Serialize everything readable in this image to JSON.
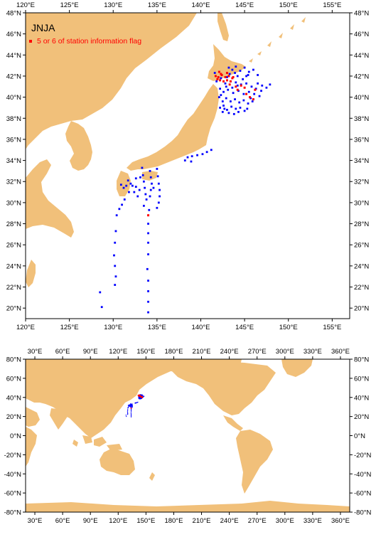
{
  "colors": {
    "land": "#f1c07a",
    "ocean": "#ffffff",
    "frame": "#000000",
    "station": "#0000ff",
    "flagged": "#ff0000"
  },
  "map_top": {
    "title": "JNJA",
    "legend": {
      "marker": "square",
      "text": "5 or 6 of station information flag"
    },
    "lon_range": [
      120,
      157
    ],
    "lat_range": [
      19,
      48
    ],
    "lon_labels": [
      "120°E",
      "125°E",
      "130°E",
      "135°E",
      "140°E",
      "145°E",
      "150°E",
      "155°E"
    ],
    "lat_labels": [
      "20°N",
      "22°N",
      "24°N",
      "26°N",
      "28°N",
      "30°N",
      "32°N",
      "34°N",
      "36°N",
      "38°N",
      "40°N",
      "42°N",
      "44°N",
      "46°N",
      "48°N"
    ]
  },
  "map_world": {
    "lon_range": [
      20,
      370
    ],
    "lat_range": [
      -80,
      80
    ],
    "lon_labels": [
      "30°E",
      "60°E",
      "90°E",
      "120°E",
      "150°E",
      "180°E",
      "210°E",
      "240°E",
      "270°E",
      "300°E",
      "330°E",
      "360°E"
    ],
    "lat_labels": [
      "80°N",
      "60°N",
      "40°N",
      "20°N",
      "0°N",
      "-20°N",
      "-40°N",
      "-60°N",
      "-80°N"
    ]
  },
  "stations": {
    "blue": [
      [
        143.2,
        42.8
      ],
      [
        143.6,
        42.6
      ],
      [
        144.0,
        42.9
      ],
      [
        144.5,
        42.5
      ],
      [
        145.0,
        42.8
      ],
      [
        145.5,
        42.4
      ],
      [
        146.0,
        42.6
      ],
      [
        146.5,
        42.1
      ],
      [
        145.2,
        42.0
      ],
      [
        144.2,
        42.0
      ],
      [
        143.0,
        41.9
      ],
      [
        142.3,
        41.8
      ],
      [
        142.8,
        41.3
      ],
      [
        143.4,
        41.5
      ],
      [
        144.0,
        41.4
      ],
      [
        144.6,
        41.2
      ],
      [
        145.2,
        41.3
      ],
      [
        145.8,
        41.0
      ],
      [
        146.5,
        41.3
      ],
      [
        147.0,
        41.1
      ],
      [
        147.5,
        40.9
      ],
      [
        147.9,
        41.2
      ],
      [
        142.2,
        40.8
      ],
      [
        142.6,
        40.5
      ],
      [
        143.1,
        40.7
      ],
      [
        143.7,
        40.4
      ],
      [
        144.3,
        40.6
      ],
      [
        144.9,
        40.3
      ],
      [
        145.5,
        40.5
      ],
      [
        146.1,
        40.3
      ],
      [
        146.7,
        40.1
      ],
      [
        142.1,
        40.0
      ],
      [
        142.5,
        39.6
      ],
      [
        142.9,
        39.9
      ],
      [
        143.4,
        39.6
      ],
      [
        143.9,
        39.8
      ],
      [
        144.4,
        39.5
      ],
      [
        144.9,
        39.7
      ],
      [
        145.4,
        39.4
      ],
      [
        145.9,
        39.6
      ],
      [
        142.2,
        39.0
      ],
      [
        142.6,
        39.2
      ],
      [
        143.0,
        38.8
      ],
      [
        143.5,
        39.1
      ],
      [
        144.0,
        38.9
      ],
      [
        144.5,
        39.0
      ],
      [
        145.0,
        38.7
      ],
      [
        142.5,
        38.6
      ],
      [
        143.2,
        38.5
      ],
      [
        143.8,
        38.4
      ],
      [
        144.3,
        38.6
      ],
      [
        142.9,
        41.0
      ],
      [
        143.6,
        40.9
      ],
      [
        144.2,
        41.1
      ],
      [
        141.8,
        41.5
      ],
      [
        142.3,
        40.2
      ],
      [
        145.7,
        39.9
      ],
      [
        146.3,
        40.8
      ],
      [
        143.3,
        42.2
      ],
      [
        144.8,
        41.7
      ],
      [
        145.4,
        42.1
      ],
      [
        141.6,
        42.3
      ],
      [
        142.7,
        38.9
      ],
      [
        143.9,
        42.3
      ],
      [
        146.9,
        40.6
      ],
      [
        145.3,
        38.9
      ],
      [
        138.5,
        34.3
      ],
      [
        139.0,
        34.4
      ],
      [
        139.6,
        34.5
      ],
      [
        140.2,
        34.6
      ],
      [
        140.7,
        34.8
      ],
      [
        141.2,
        35.0
      ],
      [
        138.9,
        33.9
      ],
      [
        138.2,
        34.0
      ],
      [
        135.0,
        33.2
      ],
      [
        135.1,
        32.5
      ],
      [
        135.2,
        31.8
      ],
      [
        135.3,
        31.2
      ],
      [
        135.3,
        30.6
      ],
      [
        135.2,
        30.0
      ],
      [
        135.0,
        29.5
      ],
      [
        134.2,
        33.0
      ],
      [
        134.3,
        32.4
      ],
      [
        134.4,
        31.8
      ],
      [
        134.3,
        31.2
      ],
      [
        134.2,
        30.6
      ],
      [
        133.3,
        33.3
      ],
      [
        133.4,
        32.6
      ],
      [
        133.5,
        32.0
      ],
      [
        133.6,
        31.4
      ],
      [
        133.7,
        30.8
      ],
      [
        133.8,
        30.3
      ],
      [
        131.7,
        32.1
      ],
      [
        132.0,
        31.8
      ],
      [
        132.2,
        31.6
      ],
      [
        132.6,
        31.5
      ],
      [
        133.0,
        31.2
      ],
      [
        131.5,
        31.6
      ],
      [
        131.2,
        31.4
      ],
      [
        130.9,
        31.7
      ],
      [
        132.4,
        31.0
      ],
      [
        132.8,
        30.6
      ],
      [
        131.3,
        30.3
      ],
      [
        131.0,
        29.8
      ],
      [
        130.7,
        29.4
      ],
      [
        130.4,
        28.8
      ],
      [
        133.1,
        32.4
      ],
      [
        132.6,
        32.3
      ],
      [
        131.8,
        31.0
      ],
      [
        133.5,
        29.7
      ],
      [
        134.1,
        29.3
      ],
      [
        134.6,
        31.4
      ],
      [
        130.3,
        27.3
      ],
      [
        130.2,
        26.2
      ],
      [
        130.1,
        25.0
      ],
      [
        130.2,
        24.0
      ],
      [
        130.3,
        23.0
      ],
      [
        130.2,
        22.2
      ],
      [
        128.5,
        21.5
      ],
      [
        128.7,
        20.1
      ],
      [
        134.0,
        28.0
      ],
      [
        134.0,
        27.1
      ],
      [
        134.0,
        26.2
      ],
      [
        134.0,
        25.1
      ],
      [
        133.9,
        23.7
      ],
      [
        134.0,
        22.6
      ],
      [
        134.0,
        21.6
      ],
      [
        134.0,
        20.6
      ],
      [
        134.0,
        19.6
      ]
    ],
    "red": [
      [
        141.7,
        42.0
      ],
      [
        142.0,
        41.9
      ],
      [
        142.4,
        42.1
      ],
      [
        142.8,
        41.9
      ],
      [
        143.2,
        42.0
      ],
      [
        143.6,
        41.8
      ],
      [
        142.2,
        41.6
      ],
      [
        142.6,
        41.5
      ],
      [
        143.0,
        41.6
      ],
      [
        143.4,
        41.5
      ],
      [
        141.9,
        41.7
      ],
      [
        142.3,
        42.2
      ],
      [
        143.7,
        41.9
      ],
      [
        144.0,
        41.0
      ],
      [
        144.2,
        40.7
      ],
      [
        145.2,
        40.3
      ],
      [
        145.6,
        40.0
      ],
      [
        146.0,
        39.8
      ],
      [
        146.2,
        40.7
      ],
      [
        143.3,
        41.2
      ],
      [
        144.6,
        41.1
      ],
      [
        145.0,
        40.9
      ],
      [
        142.1,
        42.4
      ],
      [
        143.0,
        42.3
      ],
      [
        134.0,
        28.8
      ]
    ]
  }
}
